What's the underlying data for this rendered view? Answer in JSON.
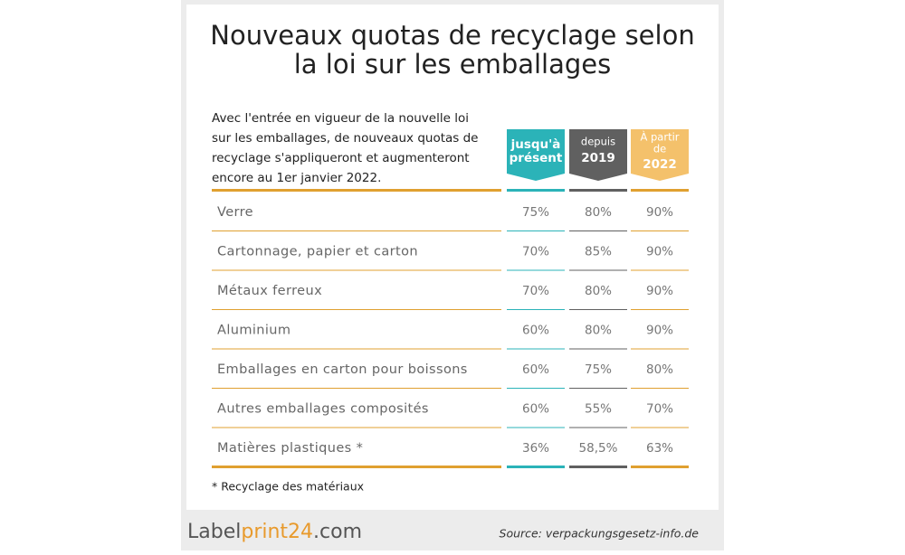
{
  "title": [
    "Nouveaux quotas de recyclage selon",
    "la loi sur les emballages"
  ],
  "intro": [
    "Avec l'entrée en vigueur de la nouvelle loi",
    "sur les emballages, de nouveaux quotas de",
    "recyclage s'appliqueront et augmenteront",
    "encore au 1er janvier 2022."
  ],
  "table": {
    "headers": [
      {
        "lines": [
          "jusqu'à",
          "présent"
        ]
      },
      {
        "lines": [
          "depuis",
          "2019"
        ]
      },
      {
        "lines": [
          "À partir",
          "de",
          "2022"
        ]
      }
    ],
    "rows": [
      [
        "Verre",
        "75%",
        "80%",
        "90%"
      ],
      [
        "Cartonnage, papier et carton",
        "70%",
        "85%",
        "90%"
      ],
      [
        "Métaux ferreux",
        "70%",
        "80%",
        "90%"
      ],
      [
        "Aluminium",
        "60%",
        "80%",
        "90%"
      ],
      [
        "Emballages en carton pour boissons",
        "60%",
        "75%",
        "80%"
      ],
      [
        "Autres emballages composités",
        "60%",
        "55%",
        "70%"
      ],
      [
        "Matières plastiques *",
        "36%",
        "58,5%",
        "63%"
      ]
    ]
  },
  "footnote": "* Recyclage des matériaux",
  "footer": {
    "logo": [
      "Label",
      "print24",
      ".com"
    ],
    "source": "Source: verpackungsgesetz-info.de"
  }
}
